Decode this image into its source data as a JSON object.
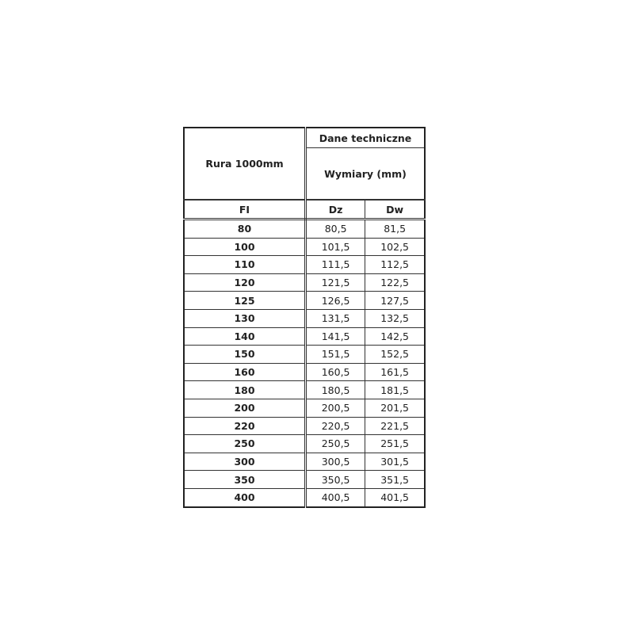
{
  "table": {
    "title": "Rura 1000mm",
    "group_header": "Dane techniczne",
    "sub_header": "Wymiary (mm)",
    "columns": [
      "FI",
      "Dz",
      "Dw"
    ],
    "rows": [
      [
        "80",
        "80,5",
        "81,5"
      ],
      [
        "100",
        "101,5",
        "102,5"
      ],
      [
        "110",
        "111,5",
        "112,5"
      ],
      [
        "120",
        "121,5",
        "122,5"
      ],
      [
        "125",
        "126,5",
        "127,5"
      ],
      [
        "130",
        "131,5",
        "132,5"
      ],
      [
        "140",
        "141,5",
        "142,5"
      ],
      [
        "150",
        "151,5",
        "152,5"
      ],
      [
        "160",
        "160,5",
        "161,5"
      ],
      [
        "180",
        "180,5",
        "181,5"
      ],
      [
        "200",
        "200,5",
        "201,5"
      ],
      [
        "220",
        "220,5",
        "221,5"
      ],
      [
        "250",
        "250,5",
        "251,5"
      ],
      [
        "300",
        "300,5",
        "301,5"
      ],
      [
        "350",
        "350,5",
        "351,5"
      ],
      [
        "400",
        "400,5",
        "401,5"
      ]
    ]
  }
}
